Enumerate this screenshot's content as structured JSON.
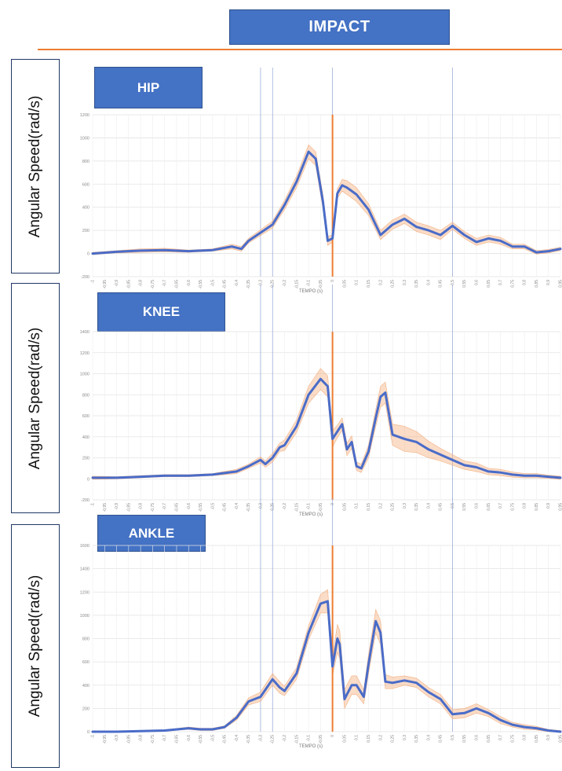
{
  "header": {
    "impact_label": "IMPACT"
  },
  "colors": {
    "accent_blue": "#4472c4",
    "mean_line": "#4a6cc8",
    "error_band": "#f4b183",
    "impact_line": "#ed7d31",
    "divider": "#ed7d31"
  },
  "chart_data": [
    {
      "type": "line",
      "title": "HIP",
      "xlabel": "TEMPO (s)",
      "ylabel": "Angular Speed(rad/s)",
      "ylim": [
        -200,
        1200
      ],
      "yticks": [
        "-200",
        "0",
        "200",
        "400",
        "600",
        "800",
        "1000",
        "1200"
      ],
      "xlim": [
        -1,
        0.95
      ],
      "xticks": [
        "-1",
        "-0,95",
        "-0,9",
        "-0,85",
        "-0,8",
        "-0,75",
        "-0,7",
        "-0,65",
        "-0,6",
        "-0,55",
        "-0,5",
        "-0,45",
        "-0,4",
        "-0,35",
        "-0,3",
        "-0,25",
        "-0,2",
        "-0,15",
        "-0,1",
        "-0,05",
        "0",
        "0,05",
        "0,1",
        "0,15",
        "0,2",
        "0,25",
        "0,3",
        "0,35",
        "0,4",
        "0,45",
        "0,5",
        "0,55",
        "0,6",
        "0,65",
        "0,7",
        "0,75",
        "0,8",
        "0,85",
        "0,9",
        "0,95"
      ],
      "reference_lines_x": [
        -0.3,
        -0.25,
        0,
        0.5
      ],
      "impact_x": 0,
      "grid": true,
      "series": [
        {
          "x": [
            -1,
            -0.9,
            -0.8,
            -0.7,
            -0.6,
            -0.5,
            -0.42,
            -0.38,
            -0.35,
            -0.3,
            -0.25,
            -0.2,
            -0.15,
            -0.1,
            -0.07,
            -0.04,
            -0.02,
            0,
            0.02,
            0.04,
            0.06,
            0.1,
            0.15,
            0.2,
            0.25,
            0.3,
            0.35,
            0.4,
            0.45,
            0.5,
            0.55,
            0.6,
            0.65,
            0.7,
            0.75,
            0.8,
            0.85,
            0.9,
            0.95
          ],
          "values": [
            0,
            15,
            25,
            30,
            20,
            30,
            60,
            40,
            110,
            180,
            250,
            420,
            620,
            880,
            820,
            450,
            110,
            130,
            520,
            590,
            570,
            510,
            380,
            160,
            250,
            300,
            230,
            200,
            160,
            240,
            160,
            100,
            130,
            110,
            60,
            60,
            10,
            20,
            40
          ],
          "error": [
            10,
            10,
            15,
            15,
            10,
            10,
            20,
            20,
            20,
            25,
            30,
            40,
            50,
            60,
            60,
            60,
            40,
            30,
            40,
            50,
            60,
            60,
            50,
            40,
            40,
            40,
            40,
            40,
            40,
            30,
            30,
            30,
            30,
            30,
            20,
            20,
            15,
            15,
            15
          ]
        }
      ]
    },
    {
      "type": "line",
      "title": "KNEE",
      "xlabel": "TEMPO (s)",
      "ylabel": "Angular Speed(rad/s)",
      "ylim": [
        -200,
        1400
      ],
      "yticks": [
        "-200",
        "0",
        "200",
        "400",
        "600",
        "800",
        "1000",
        "1200",
        "1400"
      ],
      "xlim": [
        -1,
        0.95
      ],
      "xticks": [
        "-1",
        "-0,95",
        "-0,9",
        "-0,85",
        "-0,8",
        "-0,75",
        "-0,7",
        "-0,65",
        "-0,6",
        "-0,55",
        "-0,5",
        "-0,45",
        "-0,4",
        "-0,35",
        "-0,3",
        "-0,25",
        "-0,2",
        "-0,15",
        "-0,1",
        "-0,05",
        "0",
        "0,05",
        "0,1",
        "0,15",
        "0,2",
        "0,25",
        "0,3",
        "0,35",
        "0,4",
        "0,45",
        "0,5",
        "0,55",
        "0,6",
        "0,65",
        "0,7",
        "0,75",
        "0,8",
        "0,85",
        "0,9",
        "0,95"
      ],
      "reference_lines_x": [
        -0.3,
        -0.25,
        0,
        0.5
      ],
      "impact_x": 0,
      "grid": true,
      "series": [
        {
          "x": [
            -1,
            -0.9,
            -0.8,
            -0.7,
            -0.6,
            -0.5,
            -0.4,
            -0.35,
            -0.3,
            -0.28,
            -0.25,
            -0.22,
            -0.2,
            -0.15,
            -0.1,
            -0.05,
            -0.02,
            0,
            0.02,
            0.04,
            0.06,
            0.08,
            0.1,
            0.12,
            0.15,
            0.18,
            0.2,
            0.22,
            0.25,
            0.3,
            0.35,
            0.4,
            0.45,
            0.5,
            0.55,
            0.6,
            0.65,
            0.7,
            0.75,
            0.8,
            0.85,
            0.9,
            0.95
          ],
          "values": [
            10,
            10,
            20,
            30,
            30,
            40,
            70,
            120,
            180,
            140,
            200,
            300,
            320,
            500,
            800,
            950,
            880,
            380,
            450,
            520,
            280,
            350,
            120,
            100,
            260,
            580,
            780,
            820,
            420,
            380,
            350,
            280,
            230,
            180,
            130,
            110,
            70,
            60,
            40,
            30,
            30,
            20,
            10
          ],
          "error": [
            15,
            10,
            10,
            10,
            10,
            10,
            20,
            20,
            30,
            30,
            40,
            40,
            50,
            60,
            80,
            100,
            100,
            80,
            60,
            60,
            60,
            60,
            40,
            40,
            60,
            80,
            100,
            100,
            100,
            120,
            100,
            80,
            60,
            50,
            40,
            40,
            30,
            30,
            25,
            20,
            20,
            15,
            15
          ]
        }
      ]
    },
    {
      "type": "line",
      "title": "ANKLE",
      "xlabel": "TEMPO (s)",
      "ylabel": "Angular Speed(rad/s)",
      "ylim": [
        0,
        1600
      ],
      "yticks": [
        "0",
        "200",
        "400",
        "600",
        "800",
        "1000",
        "1200",
        "1400",
        "1600"
      ],
      "xlim": [
        -1,
        0.95
      ],
      "xticks": [
        "-1",
        "-0,95",
        "-0,9",
        "-0,85",
        "-0,8",
        "-0,75",
        "-0,7",
        "-0,65",
        "-0,6",
        "-0,55",
        "-0,5",
        "-0,45",
        "-0,4",
        "-0,35",
        "-0,3",
        "-0,25",
        "-0,2",
        "-0,15",
        "-0,1",
        "-0,05",
        "0",
        "0,05",
        "0,1",
        "0,15",
        "0,2",
        "0,25",
        "0,3",
        "0,35",
        "0,4",
        "0,45",
        "0,5",
        "0,55",
        "0,6",
        "0,65",
        "0,7",
        "0,75",
        "0,8",
        "0,85",
        "0,9",
        "0,95"
      ],
      "reference_lines_x": [
        -0.3,
        -0.25,
        0,
        0.5
      ],
      "impact_x": 0,
      "grid": true,
      "series": [
        {
          "x": [
            -1,
            -0.9,
            -0.8,
            -0.7,
            -0.6,
            -0.55,
            -0.5,
            -0.45,
            -0.4,
            -0.35,
            -0.3,
            -0.25,
            -0.22,
            -0.2,
            -0.15,
            -0.1,
            -0.05,
            -0.02,
            0,
            0.02,
            0.03,
            0.05,
            0.08,
            0.1,
            0.13,
            0.15,
            0.18,
            0.2,
            0.22,
            0.25,
            0.3,
            0.35,
            0.4,
            0.45,
            0.5,
            0.55,
            0.6,
            0.65,
            0.7,
            0.75,
            0.8,
            0.85,
            0.9,
            0.95
          ],
          "values": [
            0,
            0,
            5,
            10,
            30,
            20,
            20,
            40,
            120,
            260,
            300,
            450,
            380,
            350,
            500,
            850,
            1100,
            1120,
            560,
            800,
            750,
            280,
            400,
            400,
            300,
            580,
            950,
            850,
            430,
            420,
            440,
            420,
            340,
            280,
            150,
            160,
            200,
            160,
            100,
            60,
            40,
            30,
            10,
            0
          ],
          "error": [
            5,
            5,
            5,
            5,
            10,
            10,
            10,
            10,
            20,
            30,
            40,
            50,
            50,
            40,
            50,
            60,
            80,
            100,
            80,
            120,
            120,
            80,
            80,
            80,
            60,
            80,
            100,
            100,
            60,
            50,
            40,
            40,
            40,
            40,
            40,
            40,
            40,
            30,
            30,
            20,
            20,
            15,
            10,
            10
          ]
        }
      ]
    }
  ]
}
